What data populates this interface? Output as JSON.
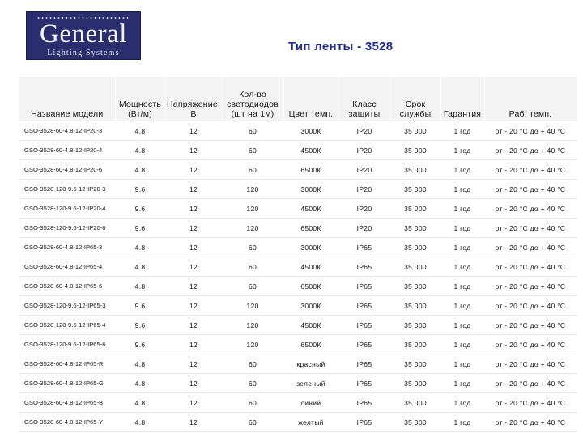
{
  "logo": {
    "brand": "General",
    "subtitle": "Lighting Systems"
  },
  "title": "Тип ленты - 3528",
  "table": {
    "headers": [
      "Название модели",
      "Мощность (Вт/м)",
      "Напряжение, В",
      "Кол-во светодиодов (шт на 1м)",
      "Цвет темп.",
      "Класс защиты",
      "Срок службы",
      "Гарантия",
      "Раб. темп."
    ],
    "rows": [
      [
        "GSO-3528-60-4.8-12-IP20-3",
        "4.8",
        "12",
        "60",
        "3000К",
        "IP20",
        "35 000",
        "1 год",
        "от - 20 °С до + 40 °С"
      ],
      [
        "GSO-3528-60-4.8-12-IP20-4",
        "4.8",
        "12",
        "60",
        "4500К",
        "IP20",
        "35 000",
        "1 год",
        "от - 20 °С до + 40 °С"
      ],
      [
        "GSO-3528-60-4.8-12-IP20-6",
        "4.8",
        "12",
        "60",
        "6500К",
        "IP20",
        "35 000",
        "1 год",
        "от - 20 °С до + 40 °С"
      ],
      [
        "GSO-3528-120-9.6-12-IP20-3",
        "9.6",
        "12",
        "120",
        "3000К",
        "IP20",
        "35 000",
        "1 год",
        "от - 20 °С до + 40 °С"
      ],
      [
        "GSO-3528-120-9.6-12-IP20-4",
        "9.6",
        "12",
        "120",
        "4500К",
        "IP20",
        "35 000",
        "1 год",
        "от - 20 °С до + 40 °С"
      ],
      [
        "GSO-3528-120-9.6-12-IP20-6",
        "9.6",
        "12",
        "120",
        "6500К",
        "IP20",
        "35 000",
        "1 год",
        "от - 20 °С до + 40 °С"
      ],
      [
        "GSO-3528-60-4.8-12-IP65-3",
        "4.8",
        "12",
        "60",
        "3000К",
        "IP65",
        "35 000",
        "1 год",
        "от - 20 °С до + 40 °С"
      ],
      [
        "GSO-3528-60-4.8-12-IP65-4",
        "4.8",
        "12",
        "60",
        "4500К",
        "IP65",
        "35 000",
        "1 год",
        "от - 20 °С до + 40 °С"
      ],
      [
        "GSO-3528-60-4.8-12-IP65-6",
        "4.8",
        "12",
        "60",
        "6500К",
        "IP65",
        "35 000",
        "1 год",
        "от - 20 °С до + 40 °С"
      ],
      [
        "GSO-3528-120-9.6-12-IP65-3",
        "9.6",
        "12",
        "120",
        "3000К",
        "IP65",
        "35 000",
        "1 год",
        "от - 20 °С до + 40 °С"
      ],
      [
        "GSO-3528-120-9.6-12-IP65-4",
        "9.6",
        "12",
        "120",
        "4500К",
        "IP65",
        "35 000",
        "1 год",
        "от - 20 °С до + 40 °С"
      ],
      [
        "GSO-3528-120-9.6-12-IP65-6",
        "9.6",
        "12",
        "120",
        "6500К",
        "IP65",
        "35 000",
        "1 год",
        "от - 20 °С до + 40 °С"
      ],
      [
        "GSO-3528-60-4.8-12-IP65-R",
        "4.8",
        "12",
        "60",
        "красный",
        "IP65",
        "35 000",
        "1 год",
        "от - 20 °С до + 40 °С"
      ],
      [
        "GSO-3528-60-4.8-12-IP65-G",
        "4.8",
        "12",
        "60",
        "зеленый",
        "IP65",
        "35 000",
        "1 год",
        "от - 20 °С до + 40 °С"
      ],
      [
        "GSO-3528-60-4.8-12-IP65-B",
        "4.8",
        "12",
        "60",
        "синий",
        "IP65",
        "35 000",
        "1 год",
        "от - 20 °С до + 40 °С"
      ],
      [
        "GSO-3528-60-4.8-12-IP65-Y",
        "4.8",
        "12",
        "60",
        "желтый",
        "IP65",
        "35 000",
        "1 год",
        "от - 20 °С до + 40 °С"
      ]
    ]
  },
  "colors": {
    "title": "#1f2a8a",
    "logo_background": "#2a2d6e",
    "header_background": "#f3f3f3"
  }
}
